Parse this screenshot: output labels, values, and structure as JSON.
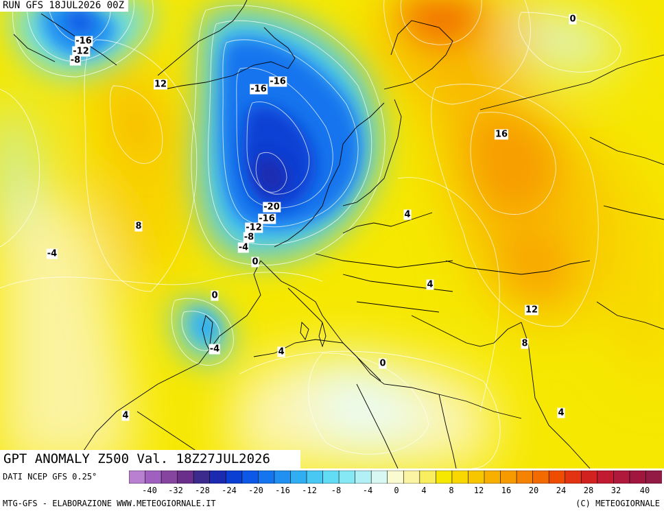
{
  "header": {
    "run_label": "RUN GFS 18JUL2026 00Z"
  },
  "map": {
    "field_title": "GPT ANOMALY Z500 Val. 18Z27JUL2026",
    "contour_labels": [
      {
        "text": "-16",
        "value": -16
      },
      {
        "text": "-12",
        "value": -12
      },
      {
        "text": "-8",
        "value": -8
      },
      {
        "text": "12",
        "value": 12
      },
      {
        "text": "-16",
        "value": -16
      },
      {
        "text": "-16",
        "value": -16
      },
      {
        "text": "0",
        "value": 0
      },
      {
        "text": "16",
        "value": 16
      },
      {
        "text": "8",
        "value": 8
      },
      {
        "text": "-4",
        "value": -4
      },
      {
        "text": "-20",
        "value": -20
      },
      {
        "text": "-16",
        "value": -16
      },
      {
        "text": "-12",
        "value": -12
      },
      {
        "text": "-8",
        "value": -8
      },
      {
        "text": "-4",
        "value": -4
      },
      {
        "text": "0",
        "value": 0
      },
      {
        "text": "4",
        "value": 4
      },
      {
        "text": "4",
        "value": 4
      },
      {
        "text": "0",
        "value": 0
      },
      {
        "text": "-4",
        "value": -4
      },
      {
        "text": "4",
        "value": 4
      },
      {
        "text": "0",
        "value": 0
      },
      {
        "text": "12",
        "value": 12
      },
      {
        "text": "8",
        "value": 8
      },
      {
        "text": "4",
        "value": 4
      },
      {
        "text": "4",
        "value": 4
      }
    ]
  },
  "legend": {
    "source": "DATI NCEP GFS 0.25°",
    "colors": [
      "#b97fd0",
      "#9f60bf",
      "#86469f",
      "#6a2f8b",
      "#3c2a8c",
      "#1c2ab0",
      "#0b3fd4",
      "#0d58e6",
      "#1575ee",
      "#2091f0",
      "#31aef2",
      "#48c8f3",
      "#62dcf4",
      "#86e8f4",
      "#b1f1f5",
      "#d8f8f4",
      "#fafbd0",
      "#fbf5a3",
      "#f8ee5e",
      "#f6e800",
      "#f8d800",
      "#f8c600",
      "#f8b000",
      "#f79a00",
      "#f58200",
      "#f26a00",
      "#ee4d00",
      "#e23410",
      "#d22220",
      "#c21a30",
      "#b0183c",
      "#a0163f",
      "#941a46"
    ],
    "tick_labels": [
      "-40",
      "-32",
      "-28",
      "-24",
      "-20",
      "-16",
      "-12",
      "-8",
      "-4",
      "0",
      "4",
      "8",
      "12",
      "16",
      "20",
      "24",
      "28",
      "32",
      "40"
    ]
  },
  "footer": {
    "left": "MTG-GFS - ELABORAZIONE WWW.METEOGIORNALE.IT",
    "right": "(C) METEOGIORNALE"
  }
}
